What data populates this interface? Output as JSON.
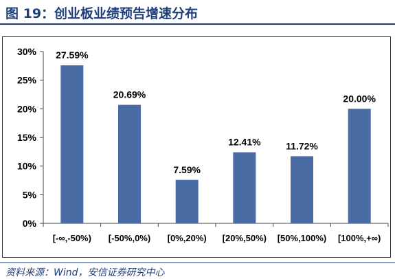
{
  "figure": {
    "title": "图 19：创业板业绩预告增速分布",
    "source": "资料来源：Wind，安信证券研究中心"
  },
  "colors": {
    "bar": "#4a6ba4",
    "title": "#1f3f7a",
    "axis": "#444444"
  },
  "chart_data": {
    "type": "bar",
    "categories": [
      "[-∞,-50%)",
      "[-50%,0%)",
      "[0%,20%)",
      "[20%,50%)",
      "[50%,100%)",
      "[100%,+∞)"
    ],
    "values": [
      27.59,
      20.69,
      7.59,
      12.41,
      11.72,
      20.0
    ],
    "data_labels": [
      "27.59%",
      "20.69%",
      "7.59%",
      "12.41%",
      "11.72%",
      "20.00%"
    ],
    "y_ticks": [
      "0%",
      "5%",
      "10%",
      "15%",
      "20%",
      "25%",
      "30%"
    ],
    "ylim": [
      0,
      30
    ],
    "grid": false,
    "legend": "none"
  }
}
